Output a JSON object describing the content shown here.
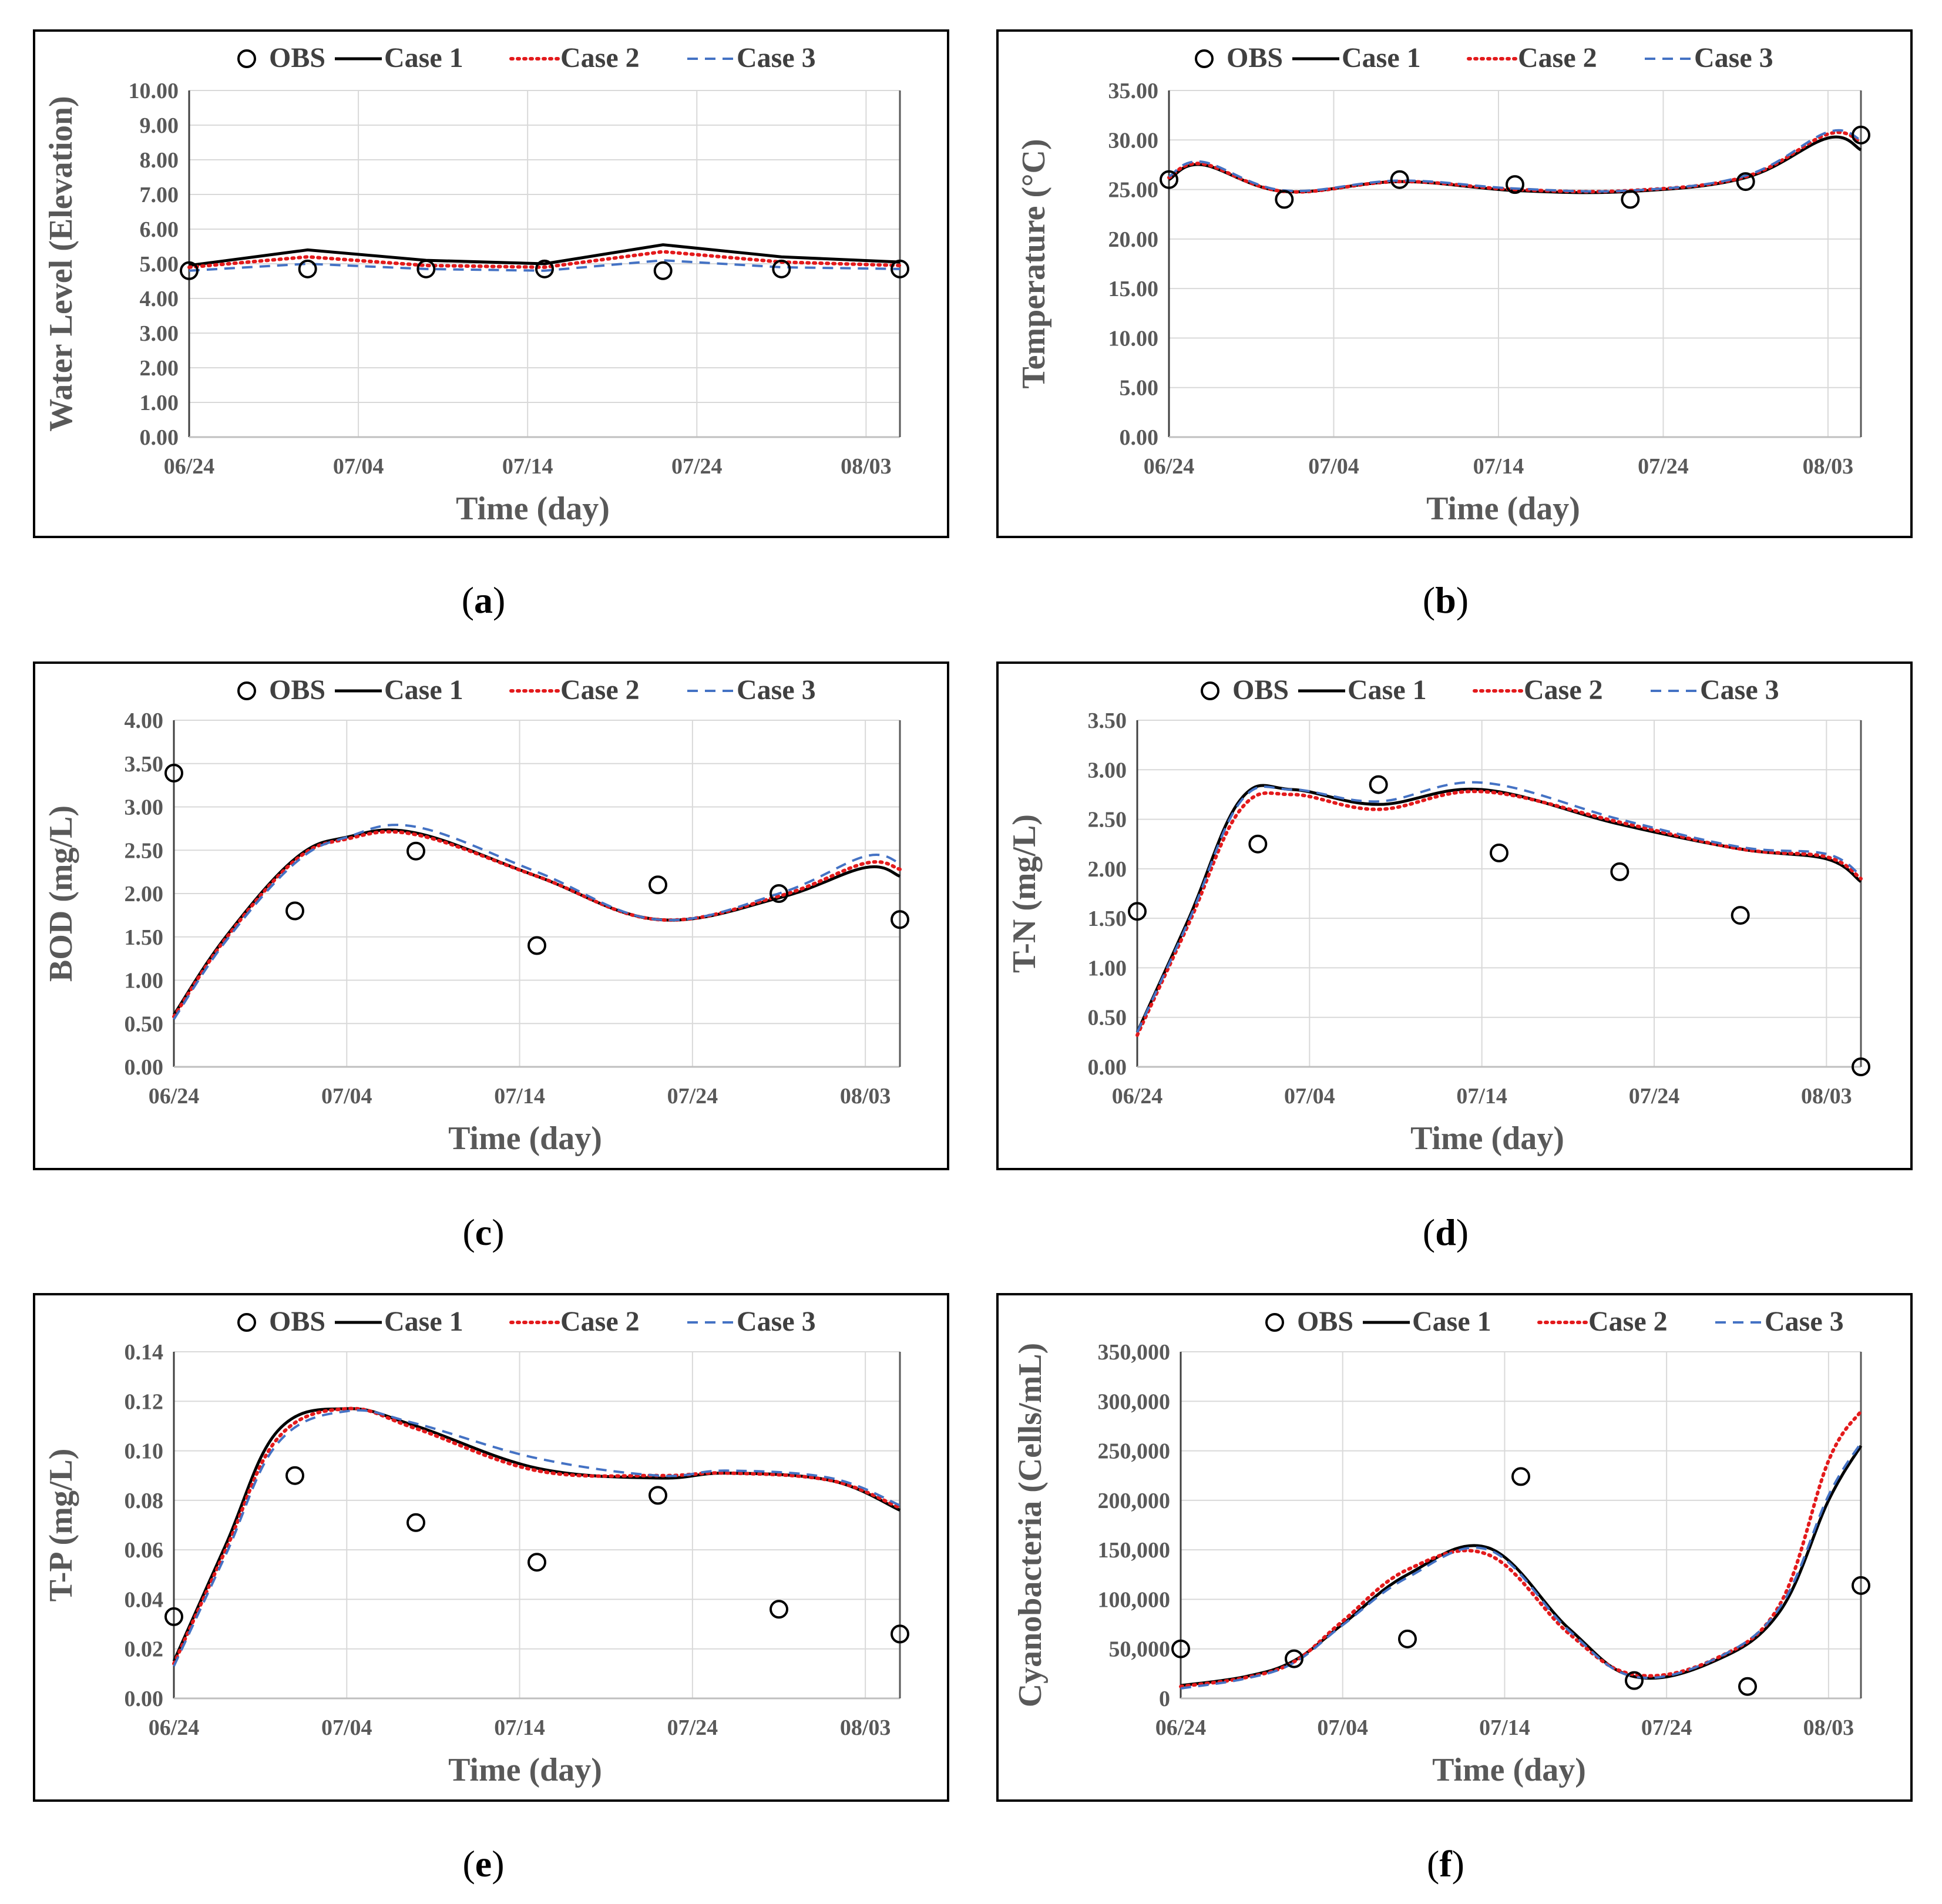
{
  "colors": {
    "case1": "#000000",
    "case2": "#e31a1c",
    "case3": "#4472c4",
    "obs": "#000000",
    "grid": "#d9d9d9",
    "axisText": "#595959"
  },
  "legend": {
    "obs": "OBS",
    "case1": "Case 1",
    "case2": "Case 2",
    "case3": "Case 3"
  },
  "chart_data": [
    {
      "type": "line",
      "id": "a",
      "caption_letter": "a",
      "ylabel": "Water Level (Elevation)",
      "xlabel": "Time (day)",
      "ylim": [
        0,
        10
      ],
      "ystep": 1,
      "ydecimals": 2,
      "xlim": [
        0,
        42
      ],
      "xticks": [
        0,
        10,
        20,
        30,
        40
      ],
      "xticklabels": [
        "06/24",
        "07/04",
        "07/14",
        "07/24",
        "08/03"
      ],
      "series": [
        {
          "name": "Case 1",
          "x": [
            0,
            7,
            14,
            21,
            28,
            35,
            42
          ],
          "y": [
            4.95,
            5.4,
            5.1,
            5.0,
            5.55,
            5.2,
            5.05
          ]
        },
        {
          "name": "Case 2",
          "x": [
            0,
            7,
            14,
            21,
            28,
            35,
            42
          ],
          "y": [
            4.9,
            5.2,
            4.95,
            4.9,
            5.35,
            5.05,
            4.95
          ]
        },
        {
          "name": "Case 3",
          "x": [
            0,
            7,
            14,
            21,
            28,
            35,
            42
          ],
          "y": [
            4.8,
            5.0,
            4.85,
            4.8,
            5.1,
            4.9,
            4.85
          ]
        }
      ],
      "obs": {
        "x": [
          0,
          7,
          14,
          21,
          28,
          35,
          42
        ],
        "y": [
          4.8,
          4.85,
          4.85,
          4.85,
          4.8,
          4.85,
          4.85
        ]
      }
    },
    {
      "type": "line",
      "id": "b",
      "caption_letter": "b",
      "ylabel": "Temperature (°C)",
      "xlabel": "Time (day)",
      "ylim": [
        0,
        35
      ],
      "ystep": 5,
      "ydecimals": 2,
      "xlim": [
        0,
        42
      ],
      "xticks": [
        0,
        10,
        20,
        30,
        40
      ],
      "xticklabels": [
        "06/24",
        "07/04",
        "07/14",
        "07/24",
        "08/03"
      ],
      "series": [
        {
          "name": "Case 1",
          "x": [
            0,
            2,
            7,
            14,
            21,
            28,
            35,
            40,
            42
          ],
          "y": [
            26.0,
            27.5,
            24.8,
            25.8,
            24.9,
            24.8,
            26.2,
            30.2,
            29.0
          ]
        },
        {
          "name": "Case 2",
          "x": [
            0,
            2,
            7,
            14,
            21,
            28,
            35,
            40,
            42
          ],
          "y": [
            26.2,
            27.6,
            24.8,
            25.8,
            25.0,
            24.9,
            26.3,
            30.6,
            29.8
          ]
        },
        {
          "name": "Case 3",
          "x": [
            0,
            2,
            7,
            14,
            21,
            28,
            35,
            40,
            42
          ],
          "y": [
            26.3,
            27.8,
            24.9,
            25.9,
            25.1,
            24.9,
            26.4,
            30.8,
            30.0
          ]
        }
      ],
      "obs": {
        "x": [
          0,
          7,
          14,
          21,
          28,
          35,
          42
        ],
        "y": [
          26.0,
          24.0,
          26.0,
          25.5,
          24.0,
          25.8,
          30.5
        ]
      }
    },
    {
      "type": "line",
      "id": "c",
      "caption_letter": "c",
      "ylabel": "BOD (mg/L)",
      "xlabel": "Time (day)",
      "ylim": [
        0,
        4
      ],
      "ystep": 0.5,
      "ydecimals": 2,
      "xlim": [
        0,
        42
      ],
      "xticks": [
        0,
        10,
        20,
        30,
        40
      ],
      "xticklabels": [
        "06/24",
        "07/04",
        "07/14",
        "07/24",
        "08/03"
      ],
      "series": [
        {
          "name": "Case 1",
          "x": [
            0,
            3,
            7,
            10,
            14,
            21,
            28,
            35,
            40,
            42
          ],
          "y": [
            0.6,
            1.5,
            2.4,
            2.65,
            2.7,
            2.2,
            1.7,
            1.95,
            2.3,
            2.2
          ]
        },
        {
          "name": "Case 2",
          "x": [
            0,
            3,
            7,
            10,
            14,
            21,
            28,
            35,
            40,
            42
          ],
          "y": [
            0.58,
            1.48,
            2.38,
            2.63,
            2.68,
            2.2,
            1.7,
            1.97,
            2.35,
            2.28
          ]
        },
        {
          "name": "Case 3",
          "x": [
            0,
            3,
            7,
            10,
            14,
            21,
            28,
            35,
            40,
            42
          ],
          "y": [
            0.55,
            1.45,
            2.35,
            2.65,
            2.77,
            2.25,
            1.7,
            2.0,
            2.43,
            2.35
          ]
        }
      ],
      "obs": {
        "x": [
          0,
          7,
          14,
          21,
          28,
          35,
          42
        ],
        "y": [
          3.39,
          1.8,
          2.49,
          1.4,
          2.1,
          2.0,
          1.7
        ]
      }
    },
    {
      "type": "line",
      "id": "d",
      "caption_letter": "d",
      "ylabel": "T-N (mg/L)",
      "xlabel": "Time (day)",
      "ylim": [
        0,
        3.5
      ],
      "ystep": 0.5,
      "ydecimals": 2,
      "xlim": [
        0,
        42
      ],
      "xticks": [
        0,
        10,
        20,
        30,
        40
      ],
      "xticklabels": [
        "06/24",
        "07/04",
        "07/14",
        "07/24",
        "08/03"
      ],
      "series": [
        {
          "name": "Case 1",
          "x": [
            0,
            3,
            6,
            9,
            14,
            20,
            28,
            35,
            40,
            42
          ],
          "y": [
            0.35,
            1.5,
            2.7,
            2.8,
            2.65,
            2.8,
            2.45,
            2.2,
            2.1,
            1.87
          ]
        },
        {
          "name": "Case 2",
          "x": [
            0,
            3,
            6,
            9,
            14,
            20,
            28,
            35,
            40,
            42
          ],
          "y": [
            0.32,
            1.45,
            2.6,
            2.75,
            2.6,
            2.78,
            2.47,
            2.2,
            2.12,
            1.9
          ]
        },
        {
          "name": "Case 3",
          "x": [
            0,
            3,
            6,
            9,
            14,
            20,
            28,
            35,
            40,
            42
          ],
          "y": [
            0.35,
            1.48,
            2.68,
            2.8,
            2.68,
            2.87,
            2.5,
            2.22,
            2.15,
            1.93
          ]
        }
      ],
      "obs": {
        "x": [
          0,
          7,
          14,
          21,
          28,
          35,
          42
        ],
        "y": [
          1.57,
          2.25,
          2.85,
          2.16,
          1.97,
          1.53,
          0.0
        ]
      }
    },
    {
      "type": "line",
      "id": "e",
      "caption_letter": "e",
      "ylabel": "T-P (mg/L)",
      "xlabel": "Time (day)",
      "ylim": [
        0,
        0.14
      ],
      "ystep": 0.02,
      "ydecimals": 2,
      "xlim": [
        0,
        42
      ],
      "xticks": [
        0,
        10,
        20,
        30,
        40
      ],
      "xticklabels": [
        "06/24",
        "07/04",
        "07/14",
        "07/24",
        "08/03"
      ],
      "series": [
        {
          "name": "Case 1",
          "x": [
            0,
            3,
            6,
            10,
            14,
            21,
            28,
            32,
            38,
            42
          ],
          "y": [
            0.015,
            0.062,
            0.108,
            0.117,
            0.11,
            0.093,
            0.089,
            0.091,
            0.088,
            0.076
          ]
        },
        {
          "name": "Case 2",
          "x": [
            0,
            3,
            6,
            10,
            14,
            21,
            28,
            32,
            38,
            42
          ],
          "y": [
            0.014,
            0.06,
            0.105,
            0.117,
            0.109,
            0.092,
            0.09,
            0.091,
            0.088,
            0.077
          ]
        },
        {
          "name": "Case 3",
          "x": [
            0,
            3,
            6,
            10,
            14,
            21,
            28,
            32,
            38,
            42
          ],
          "y": [
            0.013,
            0.058,
            0.103,
            0.116,
            0.111,
            0.097,
            0.09,
            0.092,
            0.089,
            0.078
          ]
        }
      ],
      "obs": {
        "x": [
          0,
          7,
          14,
          21,
          28,
          35,
          42
        ],
        "y": [
          0.033,
          0.09,
          0.071,
          0.055,
          0.082,
          0.036,
          0.026
        ]
      }
    },
    {
      "type": "line",
      "id": "f",
      "caption_letter": "f",
      "ylabel": "Cyanobacteria (Cells/mL)",
      "xlabel": "Time (day)",
      "ylim": [
        0,
        350000
      ],
      "ystep": 50000,
      "ydecimals": 0,
      "ythousands": true,
      "xlim": [
        0,
        42
      ],
      "xticks": [
        0,
        10,
        20,
        30,
        40
      ],
      "xticklabels": [
        "06/24",
        "07/04",
        "07/14",
        "07/24",
        "08/03"
      ],
      "series": [
        {
          "name": "Case 1",
          "x": [
            0,
            4,
            7,
            10,
            14,
            19,
            24,
            28,
            33,
            37,
            40,
            42
          ],
          "y": [
            13000,
            22000,
            38000,
            75000,
            125000,
            152000,
            70000,
            22000,
            38000,
            88000,
            200000,
            255000
          ]
        },
        {
          "name": "Case 2",
          "x": [
            0,
            4,
            7,
            10,
            14,
            19,
            24,
            28,
            33,
            37,
            40,
            42
          ],
          "y": [
            12000,
            21000,
            37000,
            78000,
            130000,
            145000,
            65000,
            24000,
            40000,
            95000,
            240000,
            290000
          ]
        },
        {
          "name": "Case 3",
          "x": [
            0,
            4,
            7,
            10,
            14,
            19,
            24,
            28,
            33,
            37,
            40,
            42
          ],
          "y": [
            10000,
            20000,
            36000,
            74000,
            122000,
            150000,
            68000,
            22000,
            40000,
            92000,
            205000,
            258000
          ]
        }
      ],
      "obs": {
        "x": [
          0,
          7,
          14,
          21,
          28,
          35,
          42
        ],
        "y": [
          50000,
          40000,
          60000,
          224000,
          18000,
          12000,
          114000
        ]
      }
    }
  ]
}
